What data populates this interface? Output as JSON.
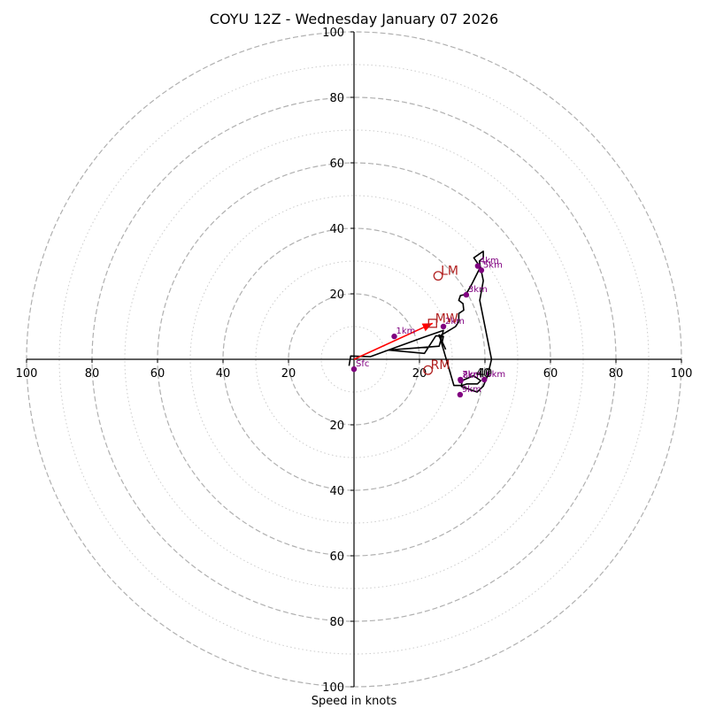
{
  "chart_data": {
    "type": "hodograph",
    "title": "COYU 12Z - Wednesday January 07 2026",
    "xlabel": "Speed in knots",
    "rings": [
      20,
      40,
      60,
      80,
      100
    ],
    "rings_minor": [
      10,
      30,
      50,
      70,
      90
    ],
    "ring_max": 100,
    "ticks": {
      "x_left": [
        "100",
        "80",
        "60",
        "40",
        "20"
      ],
      "x_right": [
        "20",
        "40",
        "60",
        "80",
        "100"
      ],
      "y_top": [
        "100",
        "80",
        "60",
        "40",
        "20"
      ],
      "y_bottom": [
        "20",
        "40",
        "60",
        "80",
        "100"
      ]
    },
    "trace": [
      [
        -1.5,
        -2
      ],
      [
        -1,
        1
      ],
      [
        5,
        0.8
      ],
      [
        11,
        3
      ],
      [
        22,
        7
      ],
      [
        27.3,
        8.8
      ],
      [
        26,
        4
      ],
      [
        10.5,
        2.8
      ],
      [
        21.5,
        1.8
      ],
      [
        25,
        7.2
      ],
      [
        27.3,
        7
      ],
      [
        27,
        5.5
      ],
      [
        26.3,
        6.5
      ],
      [
        26,
        7
      ],
      [
        31,
        10
      ],
      [
        32,
        11.5
      ],
      [
        32,
        14
      ],
      [
        33.5,
        15
      ],
      [
        33.3,
        17
      ],
      [
        32,
        18
      ],
      [
        32.5,
        19.5
      ],
      [
        34.2,
        19.8
      ],
      [
        36,
        23
      ],
      [
        38,
        27
      ],
      [
        38.6,
        28.2
      ],
      [
        38.3,
        30
      ],
      [
        39.5,
        31
      ],
      [
        39.5,
        33
      ],
      [
        36.6,
        31
      ],
      [
        38.7,
        28
      ],
      [
        38.8,
        27.3
      ],
      [
        39.5,
        24
      ],
      [
        38.4,
        18
      ],
      [
        42,
        0
      ],
      [
        40.8,
        -5
      ],
      [
        39.5,
        -8.2
      ],
      [
        37.6,
        -10
      ],
      [
        32.8,
        -8.3
      ],
      [
        33,
        -6.5
      ],
      [
        36.5,
        -5
      ],
      [
        38.7,
        -6.5
      ],
      [
        37.7,
        -7.5
      ],
      [
        34.5,
        -7.5
      ],
      [
        33,
        -8
      ],
      [
        30.5,
        -8
      ],
      [
        26,
        7.5
      ],
      [
        28,
        3
      ]
    ],
    "height_markers": [
      {
        "label": "Sfc",
        "x": 0,
        "y": -3
      },
      {
        "label": "1km",
        "x": 12.3,
        "y": 7
      },
      {
        "label": "2km",
        "x": 27.3,
        "y": 10
      },
      {
        "label": "3km",
        "x": 34.3,
        "y": 19.7
      },
      {
        "label": "4km",
        "x": 37.8,
        "y": 28.5
      },
      {
        "label": "5km",
        "x": 38.9,
        "y": 27.2
      },
      {
        "label": "6km",
        "x": 39.8,
        "y": -6.2
      },
      {
        "label": "7km",
        "x": 32.5,
        "y": -6.2
      },
      {
        "label": "8km",
        "x": 32.6,
        "y": -6.5
      },
      {
        "label": "9km",
        "x": 32.4,
        "y": -10.8
      }
    ],
    "motion_markers": [
      {
        "label": "LM",
        "x": 25.7,
        "y": 25.5,
        "shape": "circle"
      },
      {
        "label": "MW",
        "x": 24,
        "y": 11,
        "shape": "square"
      },
      {
        "label": "RM",
        "x": 22.6,
        "y": -3.3,
        "shape": "circle"
      }
    ],
    "shear_vector": {
      "from": [
        0,
        0
      ],
      "to": [
        24,
        11
      ]
    },
    "overlap_label": {
      "text": "40",
      "x": 40,
      "y": 0
    },
    "colors": {
      "grid_major": "#b0b0b0",
      "grid_minor": "#cccccc",
      "axis": "#000000",
      "trace": "#000000",
      "height_points": "#800080",
      "motion": "#b22222",
      "shear_vector": "#ff0000"
    }
  }
}
